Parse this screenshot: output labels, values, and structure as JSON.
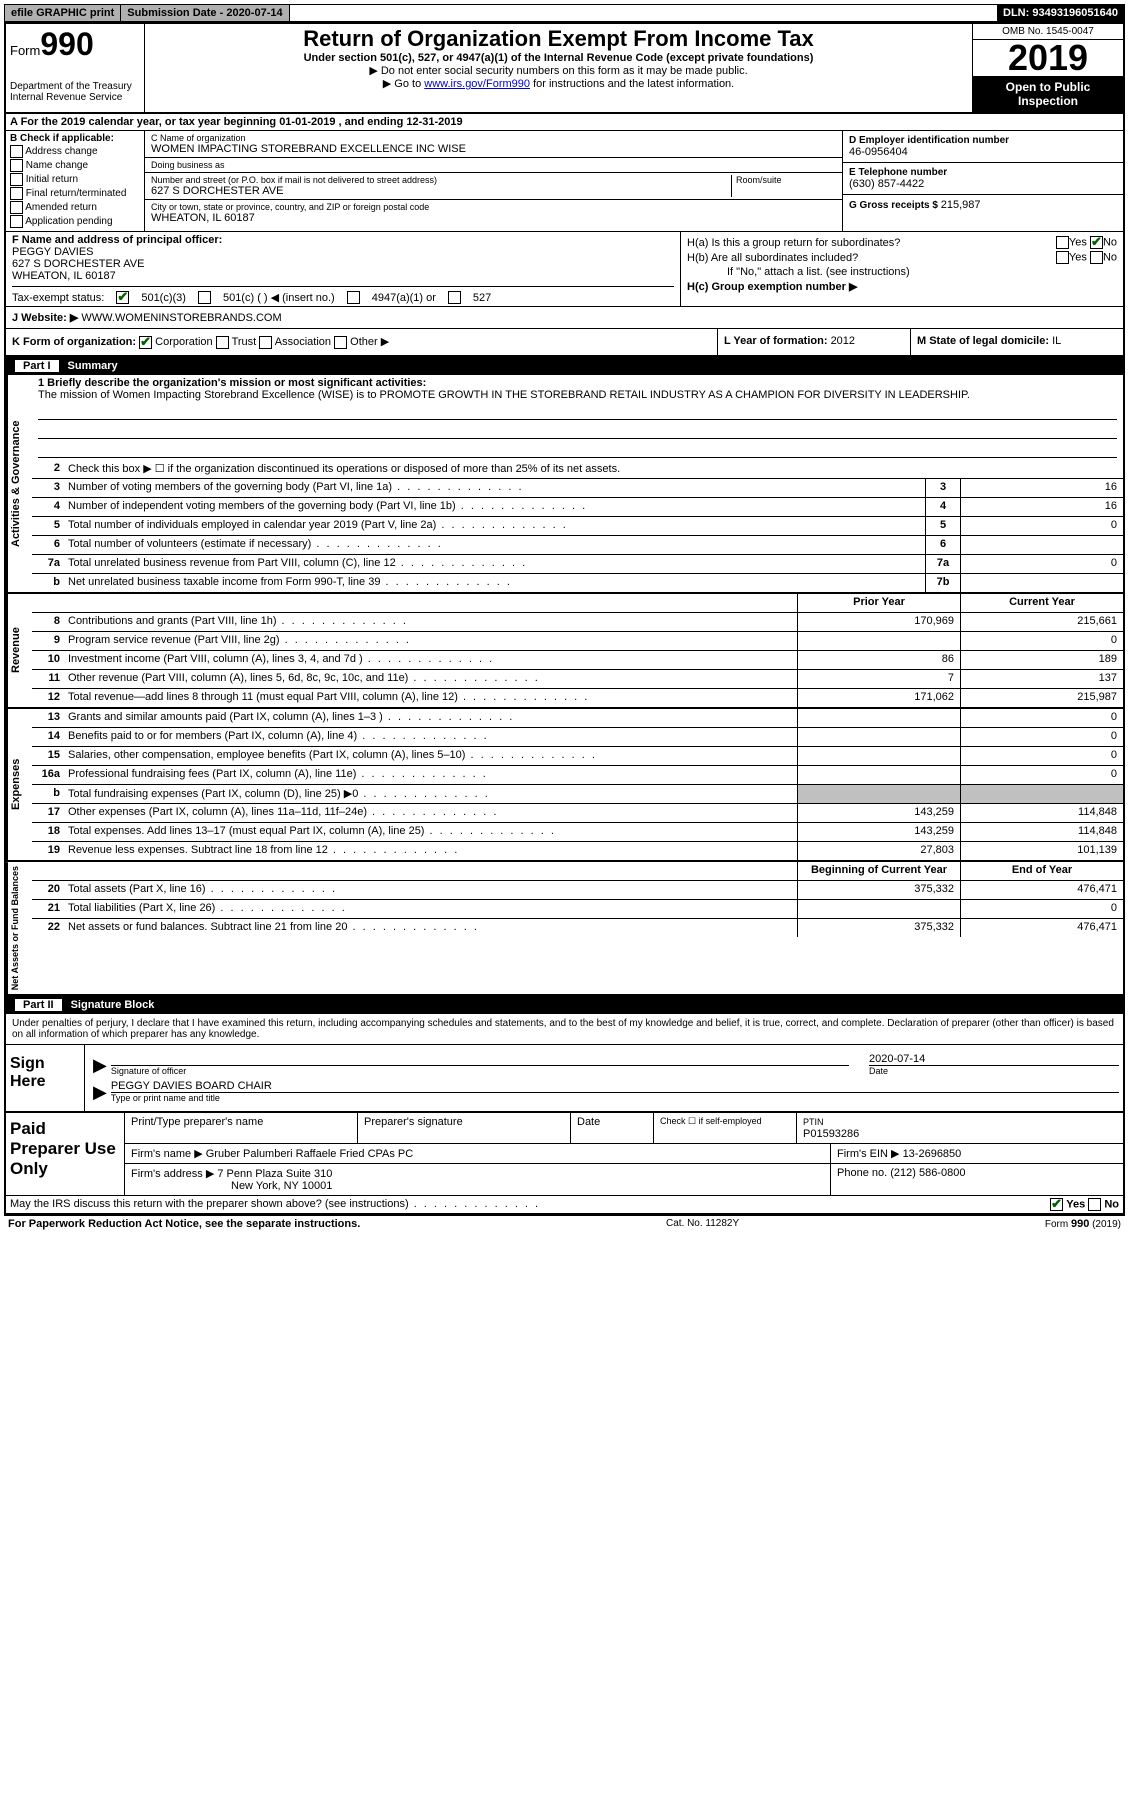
{
  "topbar": {
    "efile": "efile GRAPHIC print",
    "submission_label": "Submission Date - ",
    "submission_date": "2020-07-14",
    "dln_label": "DLN: ",
    "dln": "93493196051640"
  },
  "header": {
    "form_prefix": "Form",
    "form_number": "990",
    "dept": "Department of the Treasury\nInternal Revenue Service",
    "title": "Return of Organization Exempt From Income Tax",
    "subtitle": "Under section 501(c), 527, or 4947(a)(1) of the Internal Revenue Code (except private foundations)",
    "ssn_note": "▶ Do not enter social security numbers on this form as it may be made public.",
    "goto_prefix": "▶ Go to ",
    "goto_link": "www.irs.gov/Form990",
    "goto_suffix": " for instructions and the latest information.",
    "omb": "OMB No. 1545-0047",
    "year": "2019",
    "inspection": "Open to Public Inspection"
  },
  "row_a": "A For the 2019 calendar year, or tax year beginning 01-01-2019   , and ending 12-31-2019",
  "section_b": {
    "label": "B Check if applicable:",
    "items": [
      "Address change",
      "Name change",
      "Initial return",
      "Final return/terminated",
      "Amended return",
      "Application pending"
    ]
  },
  "section_c": {
    "name_label": "C Name of organization",
    "name": "WOMEN IMPACTING STOREBRAND EXCELLENCE INC WISE",
    "dba_label": "Doing business as",
    "dba": "",
    "addr_label": "Number and street (or P.O. box if mail is not delivered to street address)",
    "room_label": "Room/suite",
    "addr": "627 S DORCHESTER AVE",
    "city_label": "City or town, state or province, country, and ZIP or foreign postal code",
    "city": "WHEATON, IL  60187"
  },
  "section_d": {
    "ein_label": "D Employer identification number",
    "ein": "46-0956404",
    "phone_label": "E Telephone number",
    "phone": "(630) 857-4422",
    "gross_label": "G Gross receipts $ ",
    "gross": "215,987"
  },
  "section_f": {
    "label": "F  Name and address of principal officer:",
    "name": "PEGGY DAVIES",
    "addr1": "627 S DORCHESTER AVE",
    "addr2": "WHEATON, IL  60187"
  },
  "section_h": {
    "ha": "H(a)  Is this a group return for subordinates?",
    "hb": "H(b)  Are all subordinates included?",
    "hb_note": "If \"No,\" attach a list. (see instructions)",
    "hc": "H(c)  Group exemption number ▶",
    "yes": "Yes",
    "no": "No"
  },
  "tax_status": {
    "label": "Tax-exempt status:",
    "opt1": "501(c)(3)",
    "opt2": "501(c) (   ) ◀ (insert no.)",
    "opt3": "4947(a)(1) or",
    "opt4": "527"
  },
  "row_j": {
    "label": "J   Website: ▶ ",
    "value": "WWW.WOMENINSTOREBRANDS.COM"
  },
  "row_k": "K Form of organization:",
  "row_k_opts": [
    "Corporation",
    "Trust",
    "Association",
    "Other ▶"
  ],
  "row_l_label": "L Year of formation: ",
  "row_l": "2012",
  "row_m_label": "M State of legal domicile: ",
  "row_m": "IL",
  "part1_label": "Part I",
  "part1_title": "Summary",
  "mission": {
    "q": "1   Briefly describe the organization's mission or most significant activities:",
    "text": "The mission of Women Impacting Storebrand Excellence (WISE) is to PROMOTE GROWTH IN THE STOREBRAND RETAIL INDUSTRY AS A CHAMPION FOR DIVERSITY IN LEADERSHIP."
  },
  "governance": {
    "l2": "Check this box ▶ ☐  if the organization discontinued its operations or disposed of more than 25% of its net assets.",
    "rows": [
      {
        "n": "3",
        "label": "Number of voting members of the governing body (Part VI, line 1a)",
        "box": "3",
        "v": "16"
      },
      {
        "n": "4",
        "label": "Number of independent voting members of the governing body (Part VI, line 1b)",
        "box": "4",
        "v": "16"
      },
      {
        "n": "5",
        "label": "Total number of individuals employed in calendar year 2019 (Part V, line 2a)",
        "box": "5",
        "v": "0"
      },
      {
        "n": "6",
        "label": "Total number of volunteers (estimate if necessary)",
        "box": "6",
        "v": ""
      },
      {
        "n": "7a",
        "label": "Total unrelated business revenue from Part VIII, column (C), line 12",
        "box": "7a",
        "v": "0"
      },
      {
        "n": "b",
        "label": "Net unrelated business taxable income from Form 990-T, line 39",
        "box": "7b",
        "v": ""
      }
    ]
  },
  "col_headers": {
    "prior": "Prior Year",
    "current": "Current Year"
  },
  "revenue": [
    {
      "n": "8",
      "label": "Contributions and grants (Part VIII, line 1h)",
      "p": "170,969",
      "c": "215,661"
    },
    {
      "n": "9",
      "label": "Program service revenue (Part VIII, line 2g)",
      "p": "",
      "c": "0"
    },
    {
      "n": "10",
      "label": "Investment income (Part VIII, column (A), lines 3, 4, and 7d )",
      "p": "86",
      "c": "189"
    },
    {
      "n": "11",
      "label": "Other revenue (Part VIII, column (A), lines 5, 6d, 8c, 9c, 10c, and 11e)",
      "p": "7",
      "c": "137"
    },
    {
      "n": "12",
      "label": "Total revenue—add lines 8 through 11 (must equal Part VIII, column (A), line 12)",
      "p": "171,062",
      "c": "215,987"
    }
  ],
  "expenses": [
    {
      "n": "13",
      "label": "Grants and similar amounts paid (Part IX, column (A), lines 1–3 )",
      "p": "",
      "c": "0"
    },
    {
      "n": "14",
      "label": "Benefits paid to or for members (Part IX, column (A), line 4)",
      "p": "",
      "c": "0"
    },
    {
      "n": "15",
      "label": "Salaries, other compensation, employee benefits (Part IX, column (A), lines 5–10)",
      "p": "",
      "c": "0"
    },
    {
      "n": "16a",
      "label": "Professional fundraising fees (Part IX, column (A), line 11e)",
      "p": "",
      "c": "0"
    },
    {
      "n": "b",
      "label": "Total fundraising expenses (Part IX, column (D), line 25) ▶0",
      "p": "grey",
      "c": "grey"
    },
    {
      "n": "17",
      "label": "Other expenses (Part IX, column (A), lines 11a–11d, 11f–24e)",
      "p": "143,259",
      "c": "114,848"
    },
    {
      "n": "18",
      "label": "Total expenses. Add lines 13–17 (must equal Part IX, column (A), line 25)",
      "p": "143,259",
      "c": "114,848"
    },
    {
      "n": "19",
      "label": "Revenue less expenses. Subtract line 18 from line 12",
      "p": "27,803",
      "c": "101,139"
    }
  ],
  "netassets_headers": {
    "prior": "Beginning of Current Year",
    "current": "End of Year"
  },
  "netassets": [
    {
      "n": "20",
      "label": "Total assets (Part X, line 16)",
      "p": "375,332",
      "c": "476,471"
    },
    {
      "n": "21",
      "label": "Total liabilities (Part X, line 26)",
      "p": "",
      "c": "0"
    },
    {
      "n": "22",
      "label": "Net assets or fund balances. Subtract line 21 from line 20",
      "p": "375,332",
      "c": "476,471"
    }
  ],
  "vlabels": {
    "gov": "Activities & Governance",
    "rev": "Revenue",
    "exp": "Expenses",
    "net": "Net Assets or Fund Balances"
  },
  "part2_label": "Part II",
  "part2_title": "Signature Block",
  "perjury": "Under penalties of perjury, I declare that I have examined this return, including accompanying schedules and statements, and to the best of my knowledge and belief, it is true, correct, and complete. Declaration of preparer (other than officer) is based on all information of which preparer has any knowledge.",
  "sign": {
    "here": "Sign Here",
    "sig_of_officer": "Signature of officer",
    "date_label": "Date",
    "date": "2020-07-14",
    "name": "PEGGY DAVIES  BOARD CHAIR",
    "name_label": "Type or print name and title"
  },
  "preparer": {
    "label": "Paid Preparer Use Only",
    "print_name_label": "Print/Type preparer's name",
    "print_name": "",
    "sig_label": "Preparer's signature",
    "date_label": "Date",
    "check_label": "Check ☐ if self-employed",
    "ptin_label": "PTIN",
    "ptin": "P01593286",
    "firm_name_label": "Firm's name    ▶",
    "firm_name": "Gruber Palumberi Raffaele Fried CPAs PC",
    "firm_ein_label": "Firm's EIN ▶",
    "firm_ein": "13-2696850",
    "firm_addr_label": "Firm's address ▶",
    "firm_addr1": "7 Penn Plaza Suite 310",
    "firm_addr2": "New York, NY  10001",
    "phone_label": "Phone no.",
    "phone": "(212) 586-0800"
  },
  "discuss": "May the IRS discuss this return with the preparer shown above? (see instructions)",
  "footer": {
    "left": "For Paperwork Reduction Act Notice, see the separate instructions.",
    "mid": "Cat. No. 11282Y",
    "right": "Form 990 (2019)"
  }
}
